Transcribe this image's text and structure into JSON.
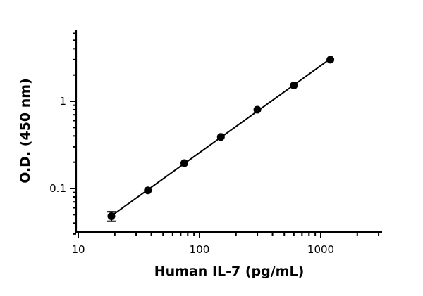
{
  "chart_data": {
    "type": "scatter",
    "title": "",
    "xlabel": "Human  IL-7 (pg/mL)",
    "ylabel": "O.D. (450 nm)",
    "x_scale": "log",
    "y_scale": "log",
    "xlim": [
      10,
      3000
    ],
    "ylim": [
      0.03,
      6
    ],
    "x_ticks": [
      {
        "value": 10,
        "label": "10"
      },
      {
        "value": 100,
        "label": "100"
      },
      {
        "value": 1000,
        "label": "1000"
      }
    ],
    "y_ticks": [
      {
        "value": 0.1,
        "label": "0.1"
      },
      {
        "value": 1,
        "label": "1"
      }
    ],
    "grid": false,
    "legend": "none",
    "series": [
      {
        "x": [
          18.75,
          37.5,
          75,
          150,
          300,
          600,
          1200
        ],
        "y": [
          0.048,
          0.095,
          0.195,
          0.39,
          0.8,
          1.52,
          3.0
        ],
        "y_err": [
          0.006,
          0,
          0,
          0,
          0,
          0,
          0
        ],
        "fit": "linear (log-log)",
        "color": "#000000"
      }
    ]
  }
}
